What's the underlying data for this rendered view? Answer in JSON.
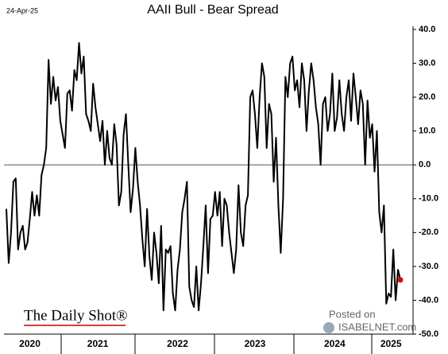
{
  "chart_data": {
    "type": "line",
    "title": "AAII Bull - Bear Spread",
    "date_label": "24-Apr-25",
    "source": "The Daily Shot®",
    "posted_on": "Posted on",
    "site": "ISABELNET.com",
    "color": "#000000",
    "marker_color": "#e00000",
    "zero_line": true,
    "ylim": [
      -50,
      40
    ],
    "yticks": [
      {
        "value": 40,
        "label": "40.0"
      },
      {
        "value": 30,
        "label": "30.0"
      },
      {
        "value": 20,
        "label": "20.0"
      },
      {
        "value": 10,
        "label": "10.0"
      },
      {
        "value": 0,
        "label": "0.0"
      },
      {
        "value": -10,
        "label": "-10.0"
      },
      {
        "value": -20,
        "label": "-20.0"
      },
      {
        "value": -30,
        "label": "-30.0"
      },
      {
        "value": -40,
        "label": "-40.0"
      },
      {
        "value": -50,
        "label": "-50.0"
      }
    ],
    "categories": [
      null,
      null,
      null,
      null,
      null,
      null,
      null,
      null,
      null,
      null,
      "2020",
      null,
      null,
      null,
      null,
      null,
      null,
      null,
      null,
      null,
      null,
      null,
      null,
      null,
      null,
      null,
      null,
      null,
      null,
      null,
      null,
      null,
      null,
      null,
      null,
      null,
      null,
      null,
      null,
      "2021",
      null,
      null,
      null,
      null,
      null,
      null,
      null,
      null,
      null,
      null,
      null,
      null,
      null,
      null,
      null,
      null,
      null,
      null,
      null,
      null,
      null,
      null,
      null,
      null,
      null,
      null,
      null,
      null,
      null,
      null,
      null,
      null,
      null,
      "2022",
      null,
      null,
      null,
      null,
      null,
      null,
      null,
      null,
      null,
      null,
      null,
      null,
      null,
      null,
      null,
      null,
      null,
      null,
      null,
      null,
      null,
      null,
      null,
      null,
      null,
      null,
      null,
      null,
      null,
      null,
      null,
      null,
      "2023",
      null,
      null,
      null,
      null,
      null,
      null,
      null,
      null,
      null,
      null,
      null,
      null,
      null,
      null,
      null,
      null,
      null,
      null,
      null,
      null,
      null,
      null,
      null,
      null,
      null,
      null,
      null,
      null,
      null,
      null,
      null,
      null,
      null,
      "2024",
      null,
      null,
      null,
      null,
      null,
      null,
      null,
      null,
      null,
      null,
      null,
      null,
      null,
      null,
      null,
      null,
      null,
      null,
      null,
      null,
      null,
      null,
      null,
      "2025",
      null,
      null,
      null,
      null
    ],
    "values": [
      -13,
      -29,
      -20,
      -5,
      -4,
      -25,
      -20,
      -18,
      -25,
      -23,
      -16,
      -8,
      -15,
      -9,
      -15,
      -3,
      0,
      5,
      31,
      18,
      26,
      19,
      23,
      13,
      9,
      5,
      21,
      22,
      16,
      28,
      25,
      36,
      27,
      32,
      15,
      13,
      10,
      24,
      17,
      12,
      7,
      13,
      0,
      10,
      2,
      0,
      12,
      6,
      -12,
      -8,
      9,
      15,
      0,
      -14,
      -7,
      5,
      -5,
      -12,
      -22,
      -30,
      -13,
      -27,
      -34,
      -20,
      -26,
      -35,
      -18,
      -43,
      -25,
      -26,
      -24,
      -38,
      -43,
      -31,
      -25,
      -14,
      -10,
      -5,
      -36,
      -40,
      -42,
      -30,
      -43,
      -35,
      -24,
      -12,
      -32,
      -16,
      -15,
      -8,
      -15,
      -8,
      -24,
      -10,
      -12,
      -20,
      -26,
      -32,
      -25,
      -6,
      -20,
      -24,
      -12,
      -9,
      20,
      22,
      15,
      5,
      20,
      30,
      26,
      5,
      18,
      15,
      -5,
      8,
      -12,
      -26,
      -10,
      26,
      20,
      30,
      32,
      22,
      25,
      17,
      30,
      25,
      10,
      22,
      30,
      25,
      17,
      12,
      0,
      18,
      20,
      10,
      15,
      27,
      10,
      14,
      25,
      15,
      10,
      20,
      25,
      13,
      27,
      20,
      12,
      22,
      18,
      0,
      19,
      8,
      12,
      -2,
      10,
      -14,
      -20,
      -12,
      -41,
      -38,
      -39,
      -25,
      -40,
      -31,
      -34
    ]
  }
}
